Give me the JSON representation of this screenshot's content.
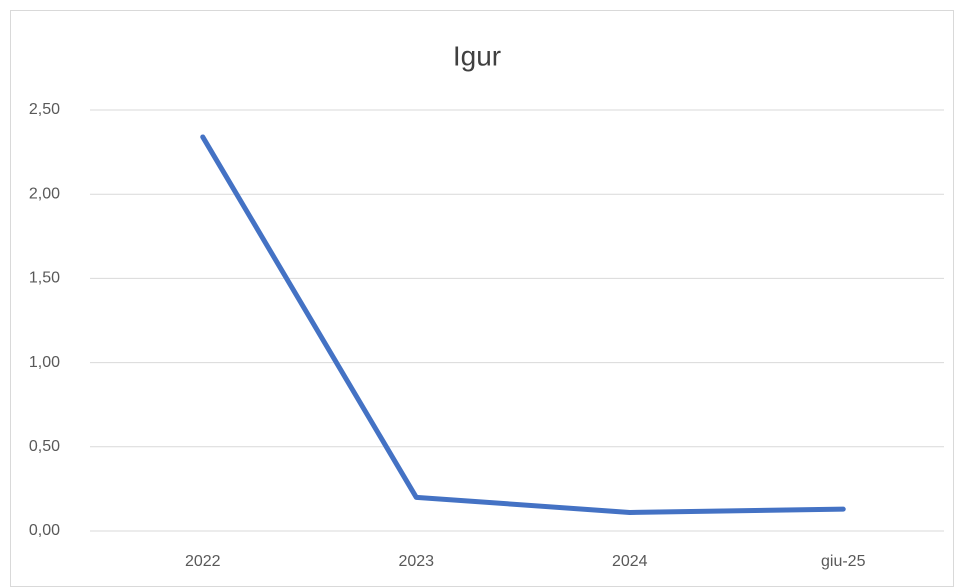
{
  "chart_data": {
    "type": "line",
    "title": "Igur",
    "categories": [
      "2022",
      "2023",
      "2024",
      "giu-25"
    ],
    "series": [
      {
        "name": "Igur",
        "color": "#4472c4",
        "values": [
          2.34,
          0.2,
          0.11,
          0.13
        ]
      }
    ],
    "ylim": [
      0,
      2.5
    ],
    "yticks": [
      {
        "value": 0,
        "label": "0,00"
      },
      {
        "value": 0.5,
        "label": "0,50"
      },
      {
        "value": 1,
        "label": "1,00"
      },
      {
        "value": 1.5,
        "label": "1,50"
      },
      {
        "value": 2,
        "label": "2,00"
      },
      {
        "value": 2.5,
        "label": "2,50"
      }
    ],
    "grid": true
  }
}
